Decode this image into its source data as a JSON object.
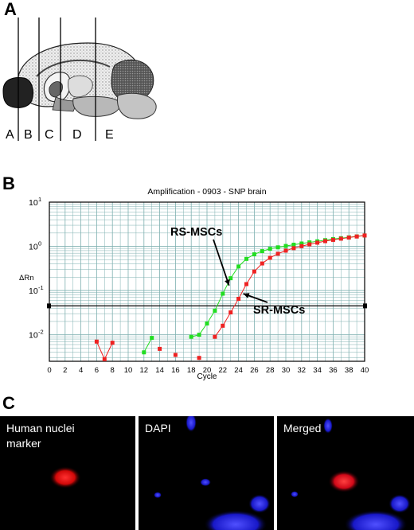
{
  "panels": {
    "a": "A",
    "b": "B",
    "c": "C"
  },
  "brain": {
    "sections": [
      "A",
      "B",
      "C",
      "D",
      "E"
    ]
  },
  "chart_data": {
    "type": "scatter",
    "title": "Amplification - 0903 - SNP brain",
    "xlabel": "Cycle",
    "ylabel": "ΔRn",
    "xlim": [
      0,
      40
    ],
    "ylim_log10": [
      -2.6,
      1
    ],
    "yscale": "log",
    "grid": true,
    "x_ticks": [
      0,
      2,
      4,
      6,
      8,
      10,
      12,
      14,
      16,
      18,
      20,
      22,
      24,
      26,
      28,
      30,
      32,
      34,
      36,
      38,
      40
    ],
    "y_ticks": [
      {
        "label": "10",
        "exp": "-2",
        "value": 0.01
      },
      {
        "label": "10",
        "exp": "-1",
        "value": 0.1
      },
      {
        "label": "10",
        "exp": "0",
        "value": 1
      },
      {
        "label": "10",
        "exp": "1",
        "value": 10
      }
    ],
    "threshold": 0.045,
    "annotations": [
      {
        "text": "RS-MSCs",
        "series": "RS-MSCs"
      },
      {
        "text": "SR-MSCs",
        "series": "SR-MSCs"
      }
    ],
    "series": [
      {
        "name": "RS-MSCs",
        "color": "#22dd22",
        "segments": [
          [
            [
              12,
              0.004
            ],
            [
              13,
              0.0085
            ]
          ],
          [
            [
              18,
              0.009
            ],
            [
              19,
              0.01
            ],
            [
              20,
              0.018
            ],
            [
              21,
              0.035
            ],
            [
              22,
              0.085
            ],
            [
              23,
              0.19
            ],
            [
              24,
              0.35
            ],
            [
              25,
              0.52
            ],
            [
              26,
              0.66
            ],
            [
              27,
              0.78
            ],
            [
              28,
              0.88
            ],
            [
              29,
              0.95
            ],
            [
              30,
              1.02
            ],
            [
              31,
              1.09
            ],
            [
              32,
              1.16
            ],
            [
              33,
              1.23
            ],
            [
              34,
              1.3
            ],
            [
              35,
              1.38
            ],
            [
              36,
              1.46
            ],
            [
              37,
              1.53
            ],
            [
              38,
              1.6
            ],
            [
              39,
              1.68
            ],
            [
              40,
              1.76
            ]
          ]
        ]
      },
      {
        "name": "SR-MSCs",
        "color": "#ee2222",
        "segments": [
          [
            [
              6,
              0.007
            ],
            [
              7,
              0.0028
            ],
            [
              8,
              0.0066
            ]
          ],
          [
            [
              14,
              0.0048
            ]
          ],
          [
            [
              16,
              0.0035
            ]
          ],
          [
            [
              19,
              0.003
            ]
          ],
          [
            [
              21,
              0.009
            ],
            [
              22,
              0.016
            ],
            [
              23,
              0.032
            ],
            [
              24,
              0.065
            ],
            [
              25,
              0.14
            ],
            [
              26,
              0.27
            ],
            [
              27,
              0.41
            ],
            [
              28,
              0.55
            ],
            [
              29,
              0.68
            ],
            [
              30,
              0.8
            ],
            [
              31,
              0.91
            ],
            [
              32,
              1.01
            ],
            [
              33,
              1.11
            ],
            [
              34,
              1.21
            ],
            [
              35,
              1.31
            ],
            [
              36,
              1.4
            ],
            [
              37,
              1.49
            ],
            [
              38,
              1.58
            ],
            [
              39,
              1.67
            ],
            [
              40,
              1.76
            ]
          ]
        ]
      }
    ]
  },
  "micrographs": [
    {
      "label": "Human nuclei\nmarker"
    },
    {
      "label": "DAPI"
    },
    {
      "label": "Merged"
    }
  ]
}
